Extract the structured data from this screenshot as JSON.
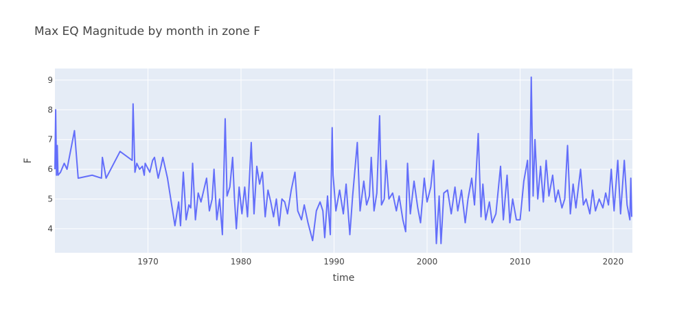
{
  "chart_data": {
    "type": "line",
    "title": "Max EQ Magnitude by month in zone F",
    "x_label": "time",
    "y_label": "F",
    "xlim": [
      1960,
      2022.07
    ],
    "xticks": [
      1970,
      1980,
      1990,
      2000,
      2010,
      2020
    ],
    "ylim": [
      3.19,
      9.39
    ],
    "yticks": [
      4,
      5,
      6,
      7,
      8,
      9
    ],
    "grid": true,
    "series": [
      {
        "name": "F",
        "color": "#636efa",
        "x": [
          1960.0,
          1960.08,
          1960.17,
          1960.25,
          1960.33,
          1960.6,
          1961.0,
          1961.3,
          1962.1,
          1962.5,
          1964.0,
          1965.0,
          1965.1,
          1965.5,
          1967.0,
          1968.3,
          1968.4,
          1968.6,
          1968.8,
          1969.1,
          1969.4,
          1969.6,
          1969.7,
          1970.2,
          1970.5,
          1970.7,
          1971.1,
          1971.4,
          1971.6,
          1972.1,
          1972.9,
          1973.3,
          1973.5,
          1973.8,
          1973.9,
          1974.1,
          1974.4,
          1974.6,
          1974.8,
          1975.1,
          1975.4,
          1975.7,
          1976.0,
          1976.3,
          1976.6,
          1976.9,
          1977.1,
          1977.4,
          1977.7,
          1978.0,
          1978.3,
          1978.5,
          1978.8,
          1979.1,
          1979.3,
          1979.5,
          1979.8,
          1980.1,
          1980.4,
          1980.7,
          1981.1,
          1981.4,
          1981.7,
          1982.0,
          1982.3,
          1982.6,
          1982.9,
          1983.2,
          1983.5,
          1983.8,
          1984.1,
          1984.4,
          1984.7,
          1985.0,
          1985.4,
          1985.8,
          1986.1,
          1986.5,
          1986.8,
          1987.2,
          1987.7,
          1988.1,
          1988.5,
          1988.8,
          1989.0,
          1989.3,
          1989.6,
          1989.8,
          1989.9,
          1990.2,
          1990.6,
          1991.0,
          1991.3,
          1991.7,
          1992.0,
          1992.5,
          1992.8,
          1993.2,
          1993.5,
          1993.8,
          1994.0,
          1994.3,
          1994.6,
          1994.9,
          1995.1,
          1995.4,
          1995.6,
          1995.9,
          1996.3,
          1996.7,
          1997.0,
          1997.4,
          1997.7,
          1997.9,
          1998.2,
          1998.6,
          1999.0,
          1999.3,
          1999.7,
          2000.0,
          2000.4,
          2000.7,
          2001.0,
          2001.3,
          2001.5,
          2001.8,
          2002.2,
          2002.6,
          2003.0,
          2003.3,
          2003.7,
          2004.1,
          2004.4,
          2004.8,
          2005.1,
          2005.5,
          2005.8,
          2006.0,
          2006.3,
          2006.7,
          2007.0,
          2007.4,
          2007.9,
          2008.2,
          2008.6,
          2008.9,
          2009.2,
          2009.6,
          2010.0,
          2010.4,
          2010.8,
          2011.0,
          2011.2,
          2011.4,
          2011.6,
          2011.9,
          2012.2,
          2012.5,
          2012.8,
          2013.1,
          2013.5,
          2013.8,
          2014.1,
          2014.5,
          2014.8,
          2015.1,
          2015.4,
          2015.7,
          2016.0,
          2016.5,
          2016.8,
          2017.1,
          2017.5,
          2017.8,
          2018.1,
          2018.5,
          2018.9,
          2019.2,
          2019.5,
          2019.8,
          2020.1,
          2020.5,
          2020.8,
          2021.2,
          2021.5,
          2021.8,
          2021.9,
          2022.0
        ],
        "values": [
          6.0,
          8.0,
          5.8,
          6.8,
          5.8,
          5.9,
          6.2,
          6.0,
          7.3,
          5.7,
          5.8,
          5.7,
          6.4,
          5.7,
          6.6,
          6.3,
          8.2,
          5.9,
          6.2,
          6.0,
          6.1,
          5.8,
          6.2,
          5.9,
          6.3,
          6.4,
          5.7,
          6.1,
          6.4,
          5.7,
          4.1,
          4.9,
          4.1,
          5.9,
          5.4,
          4.3,
          4.8,
          4.7,
          6.2,
          4.3,
          5.2,
          4.9,
          5.3,
          5.7,
          4.6,
          5.0,
          6.0,
          4.3,
          5.0,
          3.8,
          7.7,
          5.1,
          5.4,
          6.4,
          5.0,
          4.0,
          5.4,
          4.5,
          5.4,
          4.4,
          6.9,
          4.5,
          6.1,
          5.5,
          5.9,
          4.4,
          5.3,
          4.9,
          4.4,
          5.0,
          4.1,
          5.0,
          4.9,
          4.5,
          5.3,
          5.9,
          4.6,
          4.3,
          4.8,
          4.2,
          3.6,
          4.6,
          4.9,
          4.6,
          3.7,
          5.1,
          3.8,
          7.4,
          5.8,
          4.6,
          5.3,
          4.5,
          5.5,
          3.8,
          5.1,
          6.9,
          4.6,
          5.6,
          4.8,
          5.1,
          6.4,
          4.6,
          5.2,
          7.8,
          4.8,
          5.0,
          6.3,
          5.0,
          5.2,
          4.6,
          5.1,
          4.3,
          3.9,
          6.2,
          4.5,
          5.6,
          4.7,
          4.2,
          5.7,
          4.9,
          5.4,
          6.3,
          3.5,
          5.1,
          3.5,
          5.2,
          5.3,
          4.5,
          5.4,
          4.6,
          5.3,
          4.2,
          5.0,
          5.7,
          4.8,
          7.2,
          4.4,
          5.5,
          4.3,
          4.9,
          4.2,
          4.5,
          6.1,
          4.3,
          5.8,
          4.2,
          5.0,
          4.3,
          4.3,
          5.6,
          6.3,
          4.6,
          9.1,
          5.1,
          7.0,
          5.0,
          6.1,
          4.9,
          6.3,
          5.1,
          5.8,
          4.9,
          5.3,
          4.7,
          5.0,
          6.8,
          4.5,
          5.5,
          4.7,
          6.0,
          4.8,
          5.0,
          4.5,
          5.3,
          4.6,
          5.0,
          4.7,
          5.2,
          4.8,
          6.0,
          4.6,
          6.3,
          4.5,
          6.3,
          4.8,
          4.3,
          5.7,
          4.4
        ]
      }
    ]
  }
}
